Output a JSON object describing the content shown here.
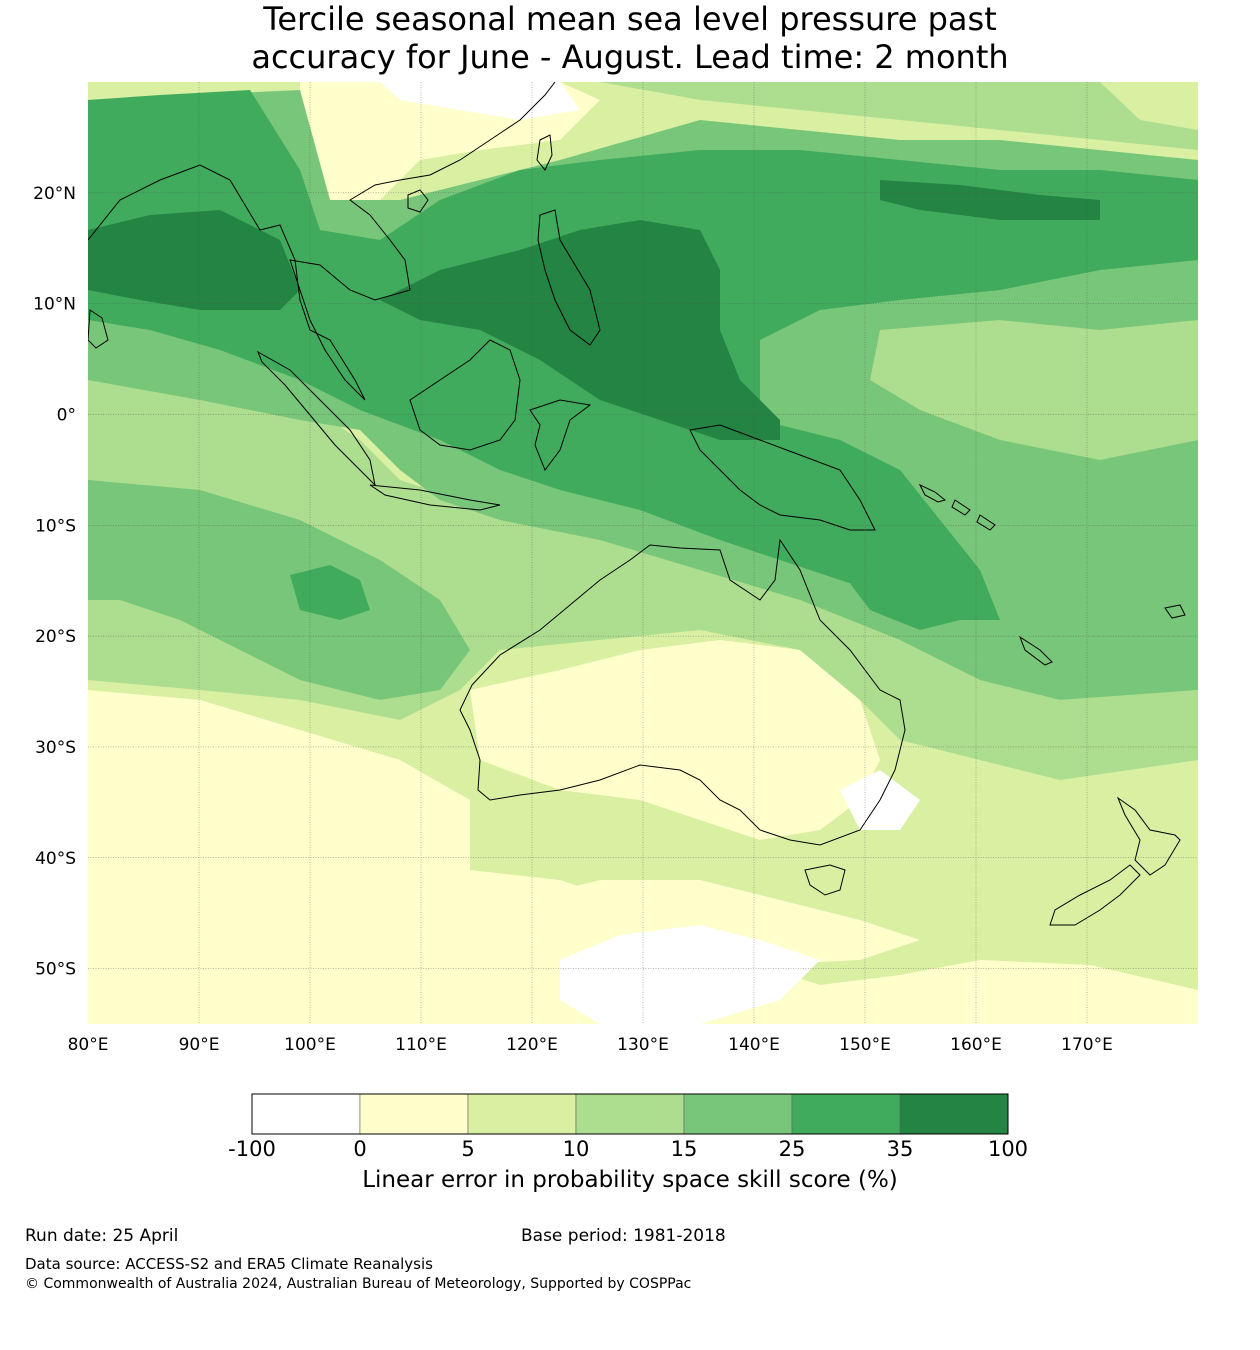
{
  "title": {
    "line1": "Tercile seasonal mean sea level pressure past",
    "line2": "accuracy for June - August. Lead time: 2 month"
  },
  "map": {
    "lon_range": [
      80,
      180
    ],
    "lat_range": [
      -55,
      30
    ],
    "lon_ticks": [
      "80°E",
      "90°E",
      "100°E",
      "110°E",
      "120°E",
      "130°E",
      "140°E",
      "150°E",
      "160°E",
      "170°E"
    ],
    "lat_ticks": [
      "20°N",
      "10°N",
      "0°",
      "10°S",
      "20°S",
      "30°S",
      "40°S",
      "50°S"
    ],
    "gridlines": true
  },
  "colorbar": {
    "boundaries": [
      "-100",
      "0",
      "5",
      "10",
      "15",
      "25",
      "35",
      "100"
    ],
    "colors": [
      "#ffffff",
      "#ffffcc",
      "#d9f0a3",
      "#addd8e",
      "#78c679",
      "#41ab5d",
      "#238443"
    ],
    "title": "Linear error in probability space skill score (%)"
  },
  "footer": {
    "run_date": "Run date: 25 April",
    "base_period": "Base period: 1981-2018",
    "data_source": "Data source: ACCESS-S2 and ERA5 Climate Reanalysis",
    "copyright": "© Commonwealth of Australia 2024, Australian Bureau of Meteorology, Supported by COSPPac"
  }
}
